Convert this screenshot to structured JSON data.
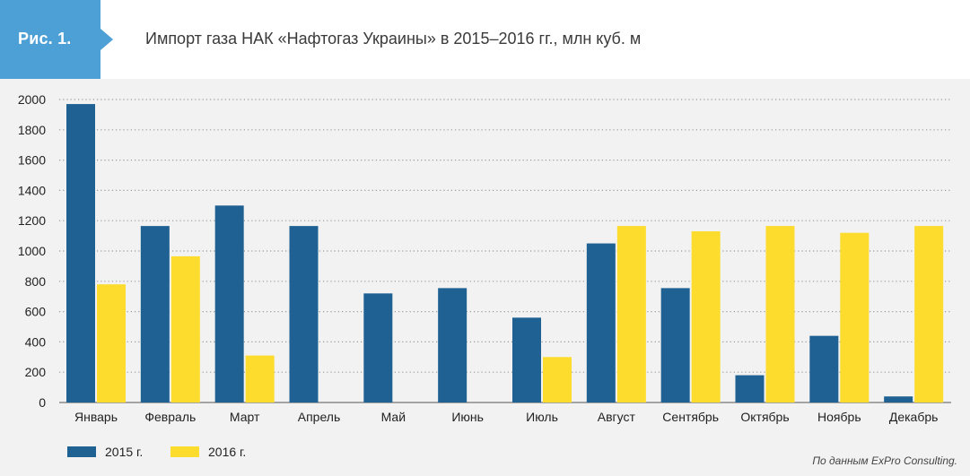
{
  "header": {
    "figure_label": "Рис. 1.",
    "title": "Импорт газа НАК «Нафтогаз Украины» в 2015–2016 гг., млн куб. м"
  },
  "colors": {
    "badge": "#4da0d6",
    "series_2015": "#1e6192",
    "series_2016": "#fddc2e",
    "grid": "#9a9a9a",
    "background": "#f2f2f2"
  },
  "chart_data": {
    "type": "bar",
    "categories": [
      "Январь",
      "Февраль",
      "Март",
      "Апрель",
      "Май",
      "Июнь",
      "Июль",
      "Август",
      "Сентябрь",
      "Октябрь",
      "Ноябрь",
      "Декабрь"
    ],
    "series": [
      {
        "name": "2015 г.",
        "values": [
          1970,
          1165,
          1300,
          1165,
          720,
          755,
          560,
          1050,
          755,
          180,
          440,
          40
        ]
      },
      {
        "name": "2016 г.",
        "values": [
          780,
          965,
          310,
          0,
          0,
          0,
          300,
          1165,
          1130,
          1165,
          1120,
          1165
        ]
      }
    ],
    "yticks": [
      0,
      200,
      400,
      600,
      800,
      1000,
      1200,
      1400,
      1600,
      1800,
      2000
    ],
    "ylim": [
      0,
      2000
    ],
    "grid": true,
    "legend": "bottom-left"
  },
  "source_note": "По данным ExPro Consulting."
}
